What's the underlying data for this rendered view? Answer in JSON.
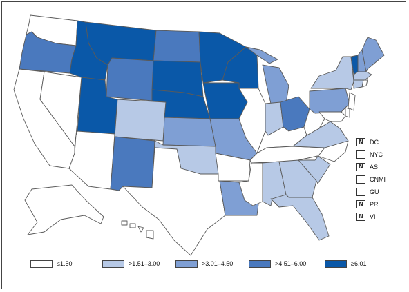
{
  "legend": [
    {
      "label": "≤1.50",
      "color": "#ffffff"
    },
    {
      "label": ">1.51–3.00",
      "color": "#b7c9e6"
    },
    {
      "label": ">3.01–4.50",
      "color": "#7f9fd4"
    },
    {
      "label": ">4.51–6.00",
      "color": "#4a79be"
    },
    {
      "label": "≥6.01",
      "color": "#0a58a8"
    }
  ],
  "territories": [
    {
      "mark": "N",
      "label": "DC"
    },
    {
      "mark": "",
      "label": "NYC"
    },
    {
      "mark": "N",
      "label": "AS"
    },
    {
      "mark": "",
      "label": "CNMI"
    },
    {
      "mark": "",
      "label": "GU"
    },
    {
      "mark": "N",
      "label": "PR"
    },
    {
      "mark": "N",
      "label": "VI"
    }
  ],
  "states": {
    "WA": 0,
    "OR": 3,
    "CA": 0,
    "NV": 0,
    "ID": 4,
    "MT": 4,
    "WY": 3,
    "UT": 4,
    "AZ": 0,
    "CO": 1,
    "NM": 3,
    "ND": 3,
    "SD": 4,
    "NE": 4,
    "KS": 2,
    "OK": 1,
    "TX": 0,
    "MN": 4,
    "IA": 4,
    "MO": 2,
    "AR": 0,
    "LA": 2,
    "WI": 4,
    "IL": 0,
    "MI": 2,
    "IN": 1,
    "OH": 3,
    "KY": 0,
    "TN": 0,
    "MS": 0,
    "AL": 1,
    "GA": 1,
    "FL": 1,
    "SC": 1,
    "NC": 0,
    "VA": 1,
    "WV": 0,
    "PA": 2,
    "NY": 1,
    "VT": 4,
    "NH": 2,
    "ME": 2,
    "MA": 1,
    "CT": 1,
    "RI": 0,
    "NJ": 0,
    "DE": 0,
    "MD": 0,
    "AK": 0,
    "HI": 0
  }
}
